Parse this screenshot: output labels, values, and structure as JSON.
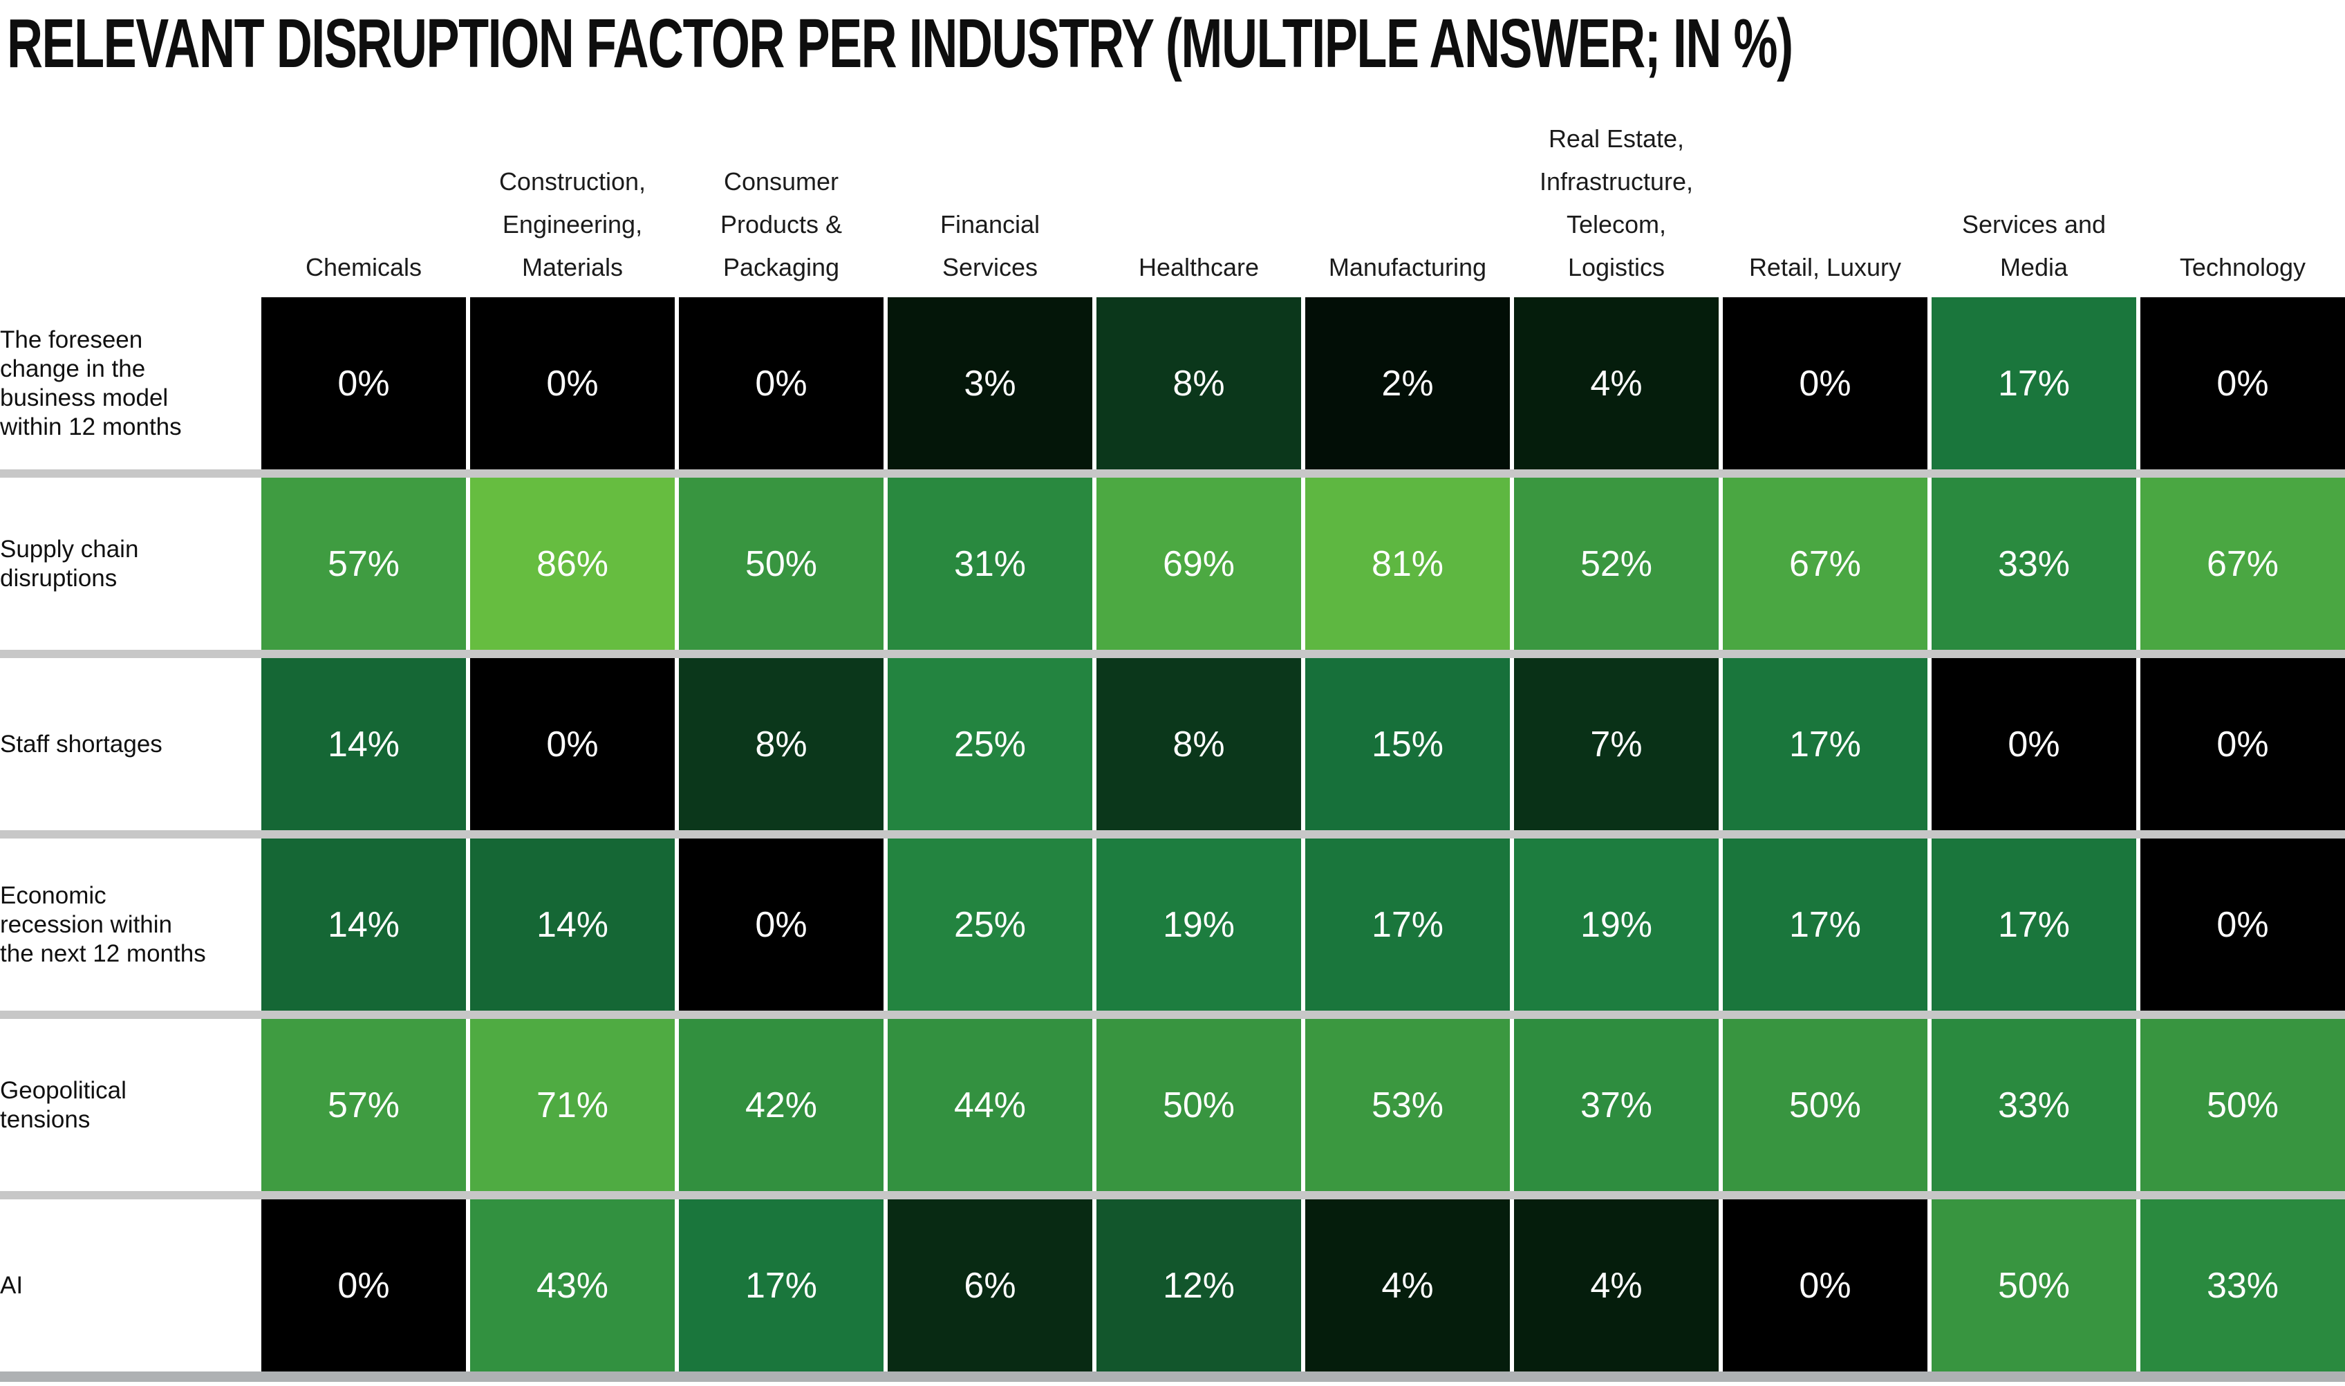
{
  "title": "RELEVANT DISRUPTION FACTOR PER INDUSTRY (MULTIPLE ANSWER; IN %)",
  "chart_data": {
    "type": "heatmap",
    "title": "RELEVANT DISRUPTION FACTOR PER INDUSTRY (MULTIPLE ANSWER; IN %)",
    "value_suffix": "%",
    "columns": [
      "Chemicals",
      "Construction,\nEngineering,\nMaterials",
      "Consumer\nProducts &\nPackaging",
      "Financial\nServices",
      "Healthcare",
      "Manufacturing",
      "Real Estate,\nInfrastructure,\nTelecom,\nLogistics",
      "Retail, Luxury",
      "Services and\nMedia",
      "Technology"
    ],
    "rows": [
      {
        "label": "The foreseen change in the business model within 12 months",
        "values": [
          0,
          0,
          0,
          3,
          8,
          2,
          4,
          0,
          17,
          0
        ]
      },
      {
        "label": "Supply chain disruptions",
        "values": [
          57,
          86,
          50,
          31,
          69,
          81,
          52,
          67,
          33,
          67
        ]
      },
      {
        "label": "Staff shortages",
        "values": [
          14,
          0,
          8,
          25,
          8,
          15,
          7,
          17,
          0,
          0
        ]
      },
      {
        "label": "Economic recession within the next 12 months",
        "values": [
          14,
          14,
          0,
          25,
          19,
          17,
          19,
          17,
          17,
          0
        ]
      },
      {
        "label": "Geopolitical tensions",
        "values": [
          57,
          71,
          42,
          44,
          50,
          53,
          37,
          50,
          33,
          50
        ]
      },
      {
        "label": "AI",
        "values": [
          0,
          43,
          17,
          6,
          12,
          4,
          4,
          0,
          50,
          33
        ]
      }
    ],
    "value_range": [
      0,
      86
    ],
    "color_scale": {
      "stops": [
        [
          0,
          "#000000"
        ],
        [
          5,
          "#06240F"
        ],
        [
          10,
          "#0E4423"
        ],
        [
          15,
          "#17703A"
        ],
        [
          20,
          "#1F8040"
        ],
        [
          35,
          "#2C8C3F"
        ],
        [
          50,
          "#389540"
        ],
        [
          70,
          "#4DAA42"
        ],
        [
          86,
          "#66BD40"
        ]
      ]
    },
    "cell_text_color": "#ffffff",
    "layout": {
      "row_divider_color": "#c7c7c7",
      "bottom_bar_color": "#aeb1b3",
      "column_gap_color": "#ffffff",
      "legend": "none",
      "grid": "off"
    }
  }
}
